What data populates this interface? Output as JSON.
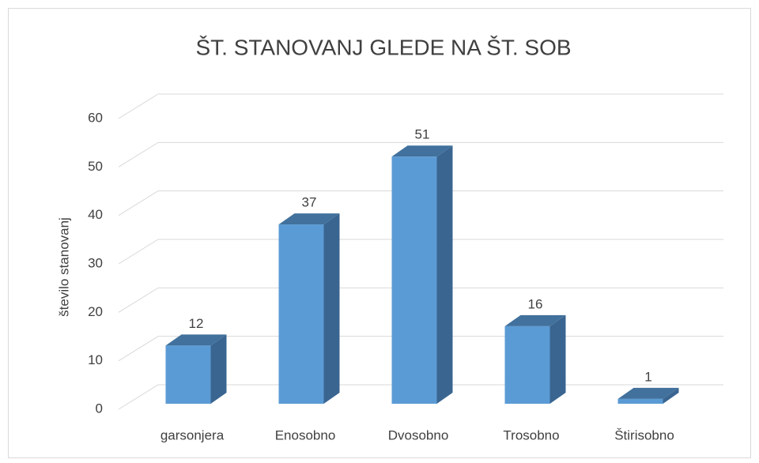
{
  "chart_data": {
    "type": "bar3d",
    "title": "ŠT. STANOVANJ GLEDE NA ŠT. SOB",
    "y_label": "število stanovanj",
    "categories": [
      "garsonjera",
      "Enosobno",
      "Dvosobno",
      "Trosobno",
      "Štirisobno"
    ],
    "values": [
      12,
      37,
      51,
      16,
      1
    ],
    "color": "#5b9bd5",
    "ylim": [
      0,
      60
    ],
    "yticks": [
      0,
      10,
      20,
      30,
      40,
      50,
      60
    ],
    "grid": true
  }
}
